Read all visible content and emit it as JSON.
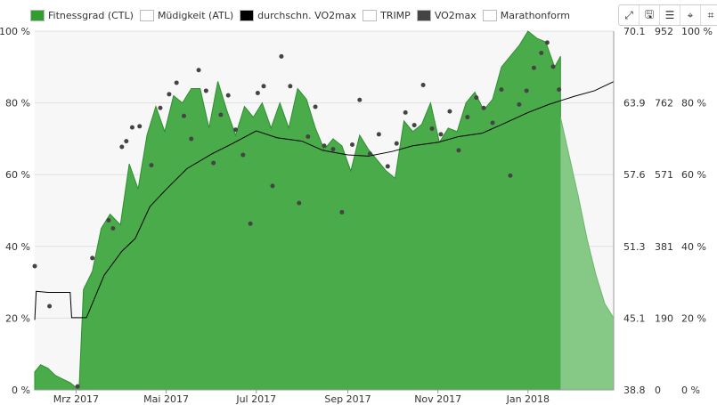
{
  "legend": [
    {
      "label": "Fitnessgrad (CTL)",
      "color": "#2e9e2e"
    },
    {
      "label": "Müdigkeit (ATL)",
      "color": "#ffffff"
    },
    {
      "label": "durchschn. VO2max",
      "color": "#000000"
    },
    {
      "label": "TRIMP",
      "color": "#ffffff"
    },
    {
      "label": "VO2max",
      "color": "#444444"
    },
    {
      "label": "Marathonform",
      "color": "#ffffff"
    }
  ],
  "toolbar": [
    {
      "name": "expand-icon",
      "glyph": "⤢"
    },
    {
      "name": "save-icon",
      "glyph": "🖫"
    },
    {
      "name": "list-icon",
      "glyph": "☰"
    },
    {
      "name": "crosshair-icon",
      "glyph": "⌖"
    },
    {
      "name": "crop-icon",
      "glyph": "⌗"
    }
  ],
  "chart_data": {
    "type": "area",
    "x_ticks": [
      "Mrz 2017",
      "Mai 2017",
      "Jul 2017",
      "Sep 2017",
      "Nov 2017",
      "Jan 2018"
    ],
    "left_axis": {
      "ticks": [
        "0 %",
        "20 %",
        "40 %",
        "60 %",
        "80 %",
        "100 %"
      ],
      "ylim": [
        0,
        100
      ]
    },
    "vo2_axis": {
      "ticks": [
        "38.8",
        "45.1",
        "51.3",
        "57.6",
        "63.9",
        "70.1"
      ],
      "ylim": [
        38.8,
        70.1
      ]
    },
    "trimp_axis": {
      "ticks": [
        "0",
        "190",
        "381",
        "571",
        "762",
        "952"
      ],
      "ylim": [
        0,
        952
      ]
    },
    "right_axis": {
      "ticks": [
        "0 %",
        "20 %",
        "40 %",
        "60 %",
        "80 %",
        "100 %"
      ]
    },
    "x_start": "2017-02-01",
    "x_end": "2018-02-28",
    "grid": true,
    "fitness_ctl": {
      "name": "Fitnessgrad (CTL)",
      "color": "#3aa33a",
      "dates": [
        "2017-02-01",
        "2017-02-05",
        "2017-02-10",
        "2017-02-15",
        "2017-02-20",
        "2017-02-25",
        "2017-03-03",
        "2017-03-06",
        "2017-03-12",
        "2017-03-18",
        "2017-03-24",
        "2017-03-31",
        "2017-04-06",
        "2017-04-12",
        "2017-04-18",
        "2017-04-24",
        "2017-04-30",
        "2017-05-06",
        "2017-05-12",
        "2017-05-18",
        "2017-05-24",
        "2017-05-30",
        "2017-06-05",
        "2017-06-11",
        "2017-06-17",
        "2017-06-23",
        "2017-06-29",
        "2017-07-05",
        "2017-07-11",
        "2017-07-17",
        "2017-07-23",
        "2017-07-29",
        "2017-08-04",
        "2017-08-10",
        "2017-08-16",
        "2017-08-22",
        "2017-08-28",
        "2017-09-03",
        "2017-09-09",
        "2017-09-15",
        "2017-09-21",
        "2017-09-27",
        "2017-10-03",
        "2017-10-09",
        "2017-10-15",
        "2017-10-21",
        "2017-10-27",
        "2017-11-02",
        "2017-11-08",
        "2017-11-14",
        "2017-11-20",
        "2017-11-26",
        "2017-12-02",
        "2017-12-08",
        "2017-12-14",
        "2017-12-20",
        "2017-12-26",
        "2018-01-01",
        "2018-01-07",
        "2018-01-13",
        "2018-01-19",
        "2018-01-23"
      ],
      "values": [
        5,
        7,
        6,
        4,
        3,
        2,
        0,
        28,
        33,
        45,
        49,
        46,
        63,
        56,
        71,
        79,
        72,
        82,
        80,
        84,
        84,
        73,
        86,
        78,
        71,
        79,
        76,
        80,
        73,
        80,
        73,
        84,
        81,
        73,
        67,
        70,
        68,
        61,
        71,
        67,
        64,
        61,
        59,
        75,
        72,
        74,
        80,
        69,
        73,
        72,
        80,
        83,
        78,
        81,
        90,
        93,
        96,
        100,
        98,
        97,
        90,
        93
      ]
    },
    "marathon_projection": {
      "name": "Marathonform",
      "dates": [
        "2018-01-23",
        "2018-01-29",
        "2018-02-04",
        "2018-02-10",
        "2018-02-16",
        "2018-02-22",
        "2018-02-28"
      ],
      "values": [
        76,
        65,
        54,
        42,
        32,
        24,
        20
      ]
    },
    "avg_vo2max": {
      "name": "durchschn. VO2max",
      "color": "#000000",
      "dates": [
        "2017-02-01",
        "2017-02-02",
        "2017-02-10",
        "2017-02-25",
        "2017-02-26",
        "2017-03-08",
        "2017-03-20",
        "2017-04-01",
        "2017-04-10",
        "2017-04-20",
        "2017-05-01",
        "2017-05-15",
        "2017-06-01",
        "2017-06-15",
        "2017-07-01",
        "2017-07-15",
        "2017-08-01",
        "2017-08-15",
        "2017-09-01",
        "2017-09-15",
        "2017-10-01",
        "2017-10-15",
        "2017-11-01",
        "2017-11-15",
        "2017-12-01",
        "2017-12-15",
        "2018-01-01",
        "2018-01-15",
        "2018-02-01",
        "2018-02-15",
        "2018-02-28"
      ],
      "values": [
        44.9,
        47.4,
        47.3,
        47.3,
        45.1,
        45.1,
        48.8,
        50.9,
        52.0,
        54.8,
        56.3,
        58.1,
        59.4,
        60.3,
        61.4,
        60.8,
        60.5,
        59.7,
        59.3,
        59.2,
        59.6,
        60.1,
        60.4,
        60.9,
        61.2,
        62.0,
        63.0,
        63.7,
        64.4,
        64.9,
        65.7
      ]
    },
    "vo2max_points": {
      "name": "VO2max",
      "color": "#444444",
      "dates": [
        "2017-02-01",
        "2017-02-11",
        "2017-03-02",
        "2017-03-12",
        "2017-03-23",
        "2017-03-26",
        "2017-04-01",
        "2017-04-04",
        "2017-04-08",
        "2017-04-13",
        "2017-04-21",
        "2017-04-27",
        "2017-05-03",
        "2017-05-08",
        "2017-05-13",
        "2017-05-18",
        "2017-05-23",
        "2017-05-28",
        "2017-06-02",
        "2017-06-07",
        "2017-06-12",
        "2017-06-17",
        "2017-06-22",
        "2017-06-27",
        "2017-07-02",
        "2017-07-06",
        "2017-07-12",
        "2017-07-18",
        "2017-07-24",
        "2017-07-30",
        "2017-08-05",
        "2017-08-10",
        "2017-08-16",
        "2017-08-22",
        "2017-08-28",
        "2017-09-04",
        "2017-09-09",
        "2017-09-16",
        "2017-09-22",
        "2017-09-28",
        "2017-10-04",
        "2017-10-10",
        "2017-10-16",
        "2017-10-22",
        "2017-10-28",
        "2017-11-03",
        "2017-11-09",
        "2017-11-15",
        "2017-11-21",
        "2017-11-27",
        "2017-12-02",
        "2017-12-08",
        "2017-12-14",
        "2017-12-20",
        "2017-12-26",
        "2017-12-31",
        "2018-01-05",
        "2018-01-10",
        "2018-01-14",
        "2018-01-18",
        "2018-01-22"
      ],
      "values": [
        49.6,
        46.1,
        39.1,
        50.3,
        53.6,
        52.9,
        60.0,
        60.5,
        61.7,
        61.8,
        58.4,
        63.4,
        64.6,
        65.6,
        62.7,
        60.7,
        66.7,
        64.9,
        58.6,
        62.8,
        64.5,
        61.5,
        59.3,
        53.3,
        64.7,
        65.3,
        56.6,
        67.9,
        65.3,
        55.1,
        60.9,
        63.5,
        60.1,
        59.8,
        54.3,
        60.2,
        64.1,
        59.4,
        61.1,
        58.3,
        60.3,
        63.0,
        61.9,
        65.4,
        61.6,
        61.1,
        63.1,
        59.7,
        62.6,
        64.3,
        63.4,
        62.1,
        65.0,
        57.5,
        63.7,
        64.9,
        66.9,
        68.2,
        69.1,
        67.0,
        65.0
      ]
    }
  }
}
